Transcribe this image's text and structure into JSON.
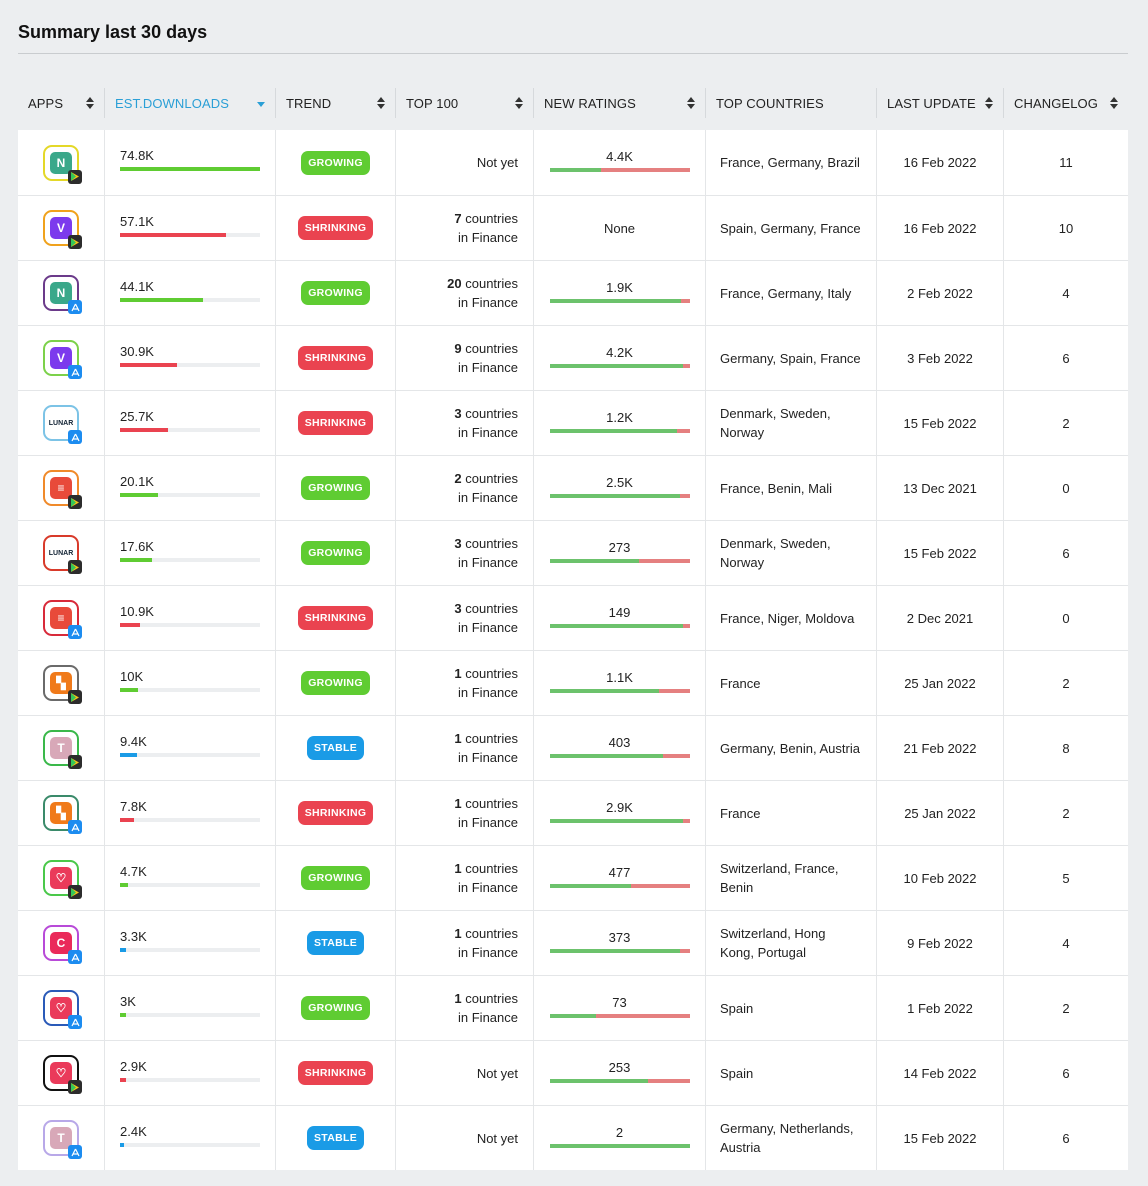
{
  "title": "Summary last 30 days",
  "headers": {
    "apps": "APPS",
    "downloads": "EST.DOWNLOADS",
    "trend": "TREND",
    "top100": "TOP 100",
    "ratings": "NEW RATINGS",
    "countries": "TOP COUNTRIES",
    "update": "LAST UPDATE",
    "changelog": "CHANGELOG"
  },
  "colors": {
    "growing": "#5fcc32",
    "shrinking": "#ea4350",
    "stable": "#1a9be6",
    "rating_positive": "#6cc26c",
    "rating_negative": "#e58080",
    "active_header": "#2a9fd6"
  },
  "rows": [
    {
      "app_icon": "n-app-icon",
      "store": "google-play",
      "icon_color": "#e4d828",
      "icon_fill": "#3aa88a",
      "icon_glyph": "N",
      "downloads": "74.8K",
      "dl_fraction": 1.0,
      "trend": "GROWING",
      "top_count": "",
      "top_text": "Not yet",
      "ratings": "4.4K",
      "rating_positive": 0.37,
      "countries": "France, Germany, Brazil",
      "update": "16 Feb 2022",
      "changelog": "11"
    },
    {
      "app_icon": "v-app-icon",
      "store": "google-play",
      "icon_color": "#f0a21c",
      "icon_fill": "#7c3aed",
      "icon_glyph": "V",
      "downloads": "57.1K",
      "dl_fraction": 0.76,
      "trend": "SHRINKING",
      "top_count": "7",
      "top_text": "countries in Finance",
      "ratings": "None",
      "rating_positive": null,
      "countries": "Spain, Germany, France",
      "update": "16 Feb 2022",
      "changelog": "10"
    },
    {
      "app_icon": "n-app-icon",
      "store": "app-store",
      "icon_color": "#6b3a8a",
      "icon_fill": "#3aa88a",
      "icon_glyph": "N",
      "downloads": "44.1K",
      "dl_fraction": 0.59,
      "trend": "GROWING",
      "top_count": "20",
      "top_text": "countries in Finance",
      "ratings": "1.9K",
      "rating_positive": 0.94,
      "countries": "France, Germany, Italy",
      "update": "2 Feb 2022",
      "changelog": "4"
    },
    {
      "app_icon": "v-app-icon",
      "store": "app-store",
      "icon_color": "#7cd14a",
      "icon_fill": "#7c3aed",
      "icon_glyph": "V",
      "downloads": "30.9K",
      "dl_fraction": 0.41,
      "trend": "SHRINKING",
      "top_count": "9",
      "top_text": "countries in Finance",
      "ratings": "4.2K",
      "rating_positive": 0.95,
      "countries": "Germany, Spain, France",
      "update": "3 Feb 2022",
      "changelog": "6"
    },
    {
      "app_icon": "lunar-app-icon",
      "store": "app-store",
      "icon_color": "#7cc3e6",
      "icon_fill": "#ffffff",
      "icon_glyph": "LUNAR",
      "downloads": "25.7K",
      "dl_fraction": 0.34,
      "trend": "SHRINKING",
      "top_count": "3",
      "top_text": "countries in Finance",
      "ratings": "1.2K",
      "rating_positive": 0.91,
      "countries": "Denmark, Sweden, Norway",
      "update": "15 Feb 2022",
      "changelog": "2"
    },
    {
      "app_icon": "wallet-app-icon",
      "store": "google-play",
      "icon_color": "#f08a2a",
      "icon_fill": "#e84a3a",
      "icon_glyph": "≡",
      "downloads": "20.1K",
      "dl_fraction": 0.27,
      "trend": "GROWING",
      "top_count": "2",
      "top_text": "countries in Finance",
      "ratings": "2.5K",
      "rating_positive": 0.93,
      "countries": "France, Benin, Mali",
      "update": "13 Dec 2021",
      "changelog": "0"
    },
    {
      "app_icon": "lunar-app-icon",
      "store": "google-play",
      "icon_color": "#d83a2a",
      "icon_fill": "#ffffff",
      "icon_glyph": "LUNAR",
      "downloads": "17.6K",
      "dl_fraction": 0.23,
      "trend": "GROWING",
      "top_count": "3",
      "top_text": "countries in Finance",
      "ratings": "273",
      "rating_positive": 0.64,
      "countries": "Denmark, Sweden, Norway",
      "update": "15 Feb 2022",
      "changelog": "6"
    },
    {
      "app_icon": "wallet-app-icon",
      "store": "app-store",
      "icon_color": "#d82a3a",
      "icon_fill": "#e84a3a",
      "icon_glyph": "≡",
      "downloads": "10.9K",
      "dl_fraction": 0.14,
      "trend": "SHRINKING",
      "top_count": "3",
      "top_text": "countries in Finance",
      "ratings": "149",
      "rating_positive": 0.95,
      "countries": "France, Niger, Moldova",
      "update": "2 Dec 2021",
      "changelog": "0"
    },
    {
      "app_icon": "block-app-icon",
      "store": "google-play",
      "icon_color": "#6a6a6a",
      "icon_fill": "#f07a1a",
      "icon_glyph": "▚",
      "downloads": "10K",
      "dl_fraction": 0.13,
      "trend": "GROWING",
      "top_count": "1",
      "top_text": "countries in Finance",
      "ratings": "1.1K",
      "rating_positive": 0.78,
      "countries": "France",
      "update": "25 Jan 2022",
      "changelog": "2"
    },
    {
      "app_icon": "t-app-icon",
      "store": "google-play",
      "icon_color": "#3ab84a",
      "icon_fill": "#d8a8b8",
      "icon_glyph": "T",
      "downloads": "9.4K",
      "dl_fraction": 0.12,
      "trend": "STABLE",
      "top_count": "1",
      "top_text": "countries in Finance",
      "ratings": "403",
      "rating_positive": 0.81,
      "countries": "Germany, Benin, Austria",
      "update": "21 Feb 2022",
      "changelog": "8"
    },
    {
      "app_icon": "block-app-icon",
      "store": "app-store",
      "icon_color": "#3a8a6a",
      "icon_fill": "#f07a1a",
      "icon_glyph": "▚",
      "downloads": "7.8K",
      "dl_fraction": 0.1,
      "trend": "SHRINKING",
      "top_count": "1",
      "top_text": "countries in Finance",
      "ratings": "2.9K",
      "rating_positive": 0.95,
      "countries": "France",
      "update": "25 Jan 2022",
      "changelog": "2"
    },
    {
      "app_icon": "heart-app-icon",
      "store": "google-play",
      "icon_color": "#4ac84a",
      "icon_fill": "#ea3a5a",
      "icon_glyph": "♡",
      "downloads": "4.7K",
      "dl_fraction": 0.06,
      "trend": "GROWING",
      "top_count": "1",
      "top_text": "countries in Finance",
      "ratings": "477",
      "rating_positive": 0.58,
      "countries": "Switzerland, France, Benin",
      "update": "10 Feb 2022",
      "changelog": "5"
    },
    {
      "app_icon": "c-app-icon",
      "store": "app-store",
      "icon_color": "#b84ad8",
      "icon_fill": "#ea2a5a",
      "icon_glyph": "C",
      "downloads": "3.3K",
      "dl_fraction": 0.04,
      "trend": "STABLE",
      "top_count": "1",
      "top_text": "countries in Finance",
      "ratings": "373",
      "rating_positive": 0.93,
      "countries": "Switzerland, Hong Kong, Portugal",
      "update": "9 Feb 2022",
      "changelog": "4"
    },
    {
      "app_icon": "heart-app-icon",
      "store": "app-store",
      "icon_color": "#2a5ab8",
      "icon_fill": "#ea3a5a",
      "icon_glyph": "♡",
      "downloads": "3K",
      "dl_fraction": 0.04,
      "trend": "GROWING",
      "top_count": "1",
      "top_text": "countries in Finance",
      "ratings": "73",
      "rating_positive": 0.33,
      "countries": "Spain",
      "update": "1 Feb 2022",
      "changelog": "2"
    },
    {
      "app_icon": "heart-app-icon",
      "store": "google-play",
      "icon_color": "#111111",
      "icon_fill": "#ea3a5a",
      "icon_glyph": "♡",
      "downloads": "2.9K",
      "dl_fraction": 0.04,
      "trend": "SHRINKING",
      "top_count": "",
      "top_text": "Not yet",
      "ratings": "253",
      "rating_positive": 0.7,
      "countries": "Spain",
      "update": "14 Feb 2022",
      "changelog": "6"
    },
    {
      "app_icon": "t-app-icon",
      "store": "app-store",
      "icon_color": "#b8a8e8",
      "icon_fill": "#d8a8b8",
      "icon_glyph": "T",
      "downloads": "2.4K",
      "dl_fraction": 0.03,
      "trend": "STABLE",
      "top_count": "",
      "top_text": "Not yet",
      "ratings": "2",
      "rating_positive": 1.0,
      "countries": "Germany, Netherlands, Austria",
      "update": "15 Feb 2022",
      "changelog": "6"
    }
  ]
}
